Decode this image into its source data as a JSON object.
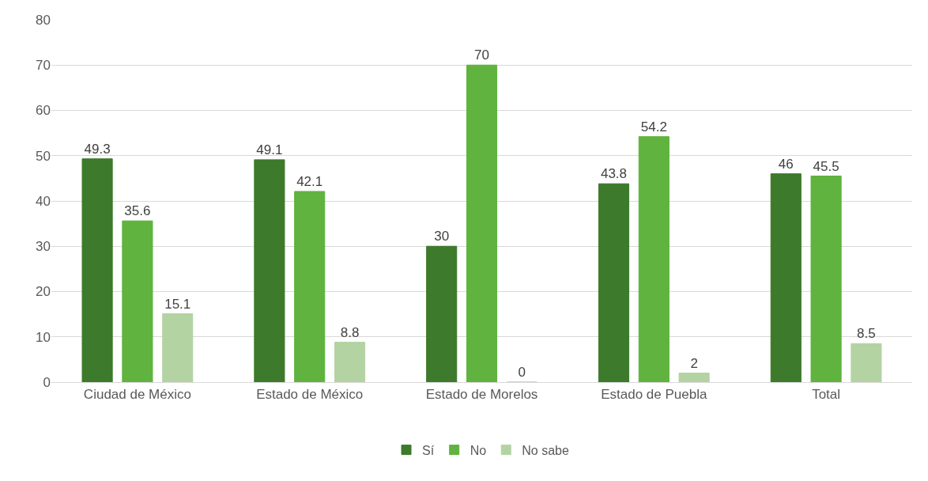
{
  "chart_data": {
    "type": "bar",
    "categories": [
      "Ciudad de México",
      "Estado de México",
      "Estado de Morelos",
      "Estado de Puebla",
      "Total"
    ],
    "series": [
      {
        "name": "Sí",
        "color": "#3d7a2b",
        "values": [
          49.3,
          49.1,
          30,
          43.8,
          46
        ]
      },
      {
        "name": "No",
        "color": "#5fb33e",
        "values": [
          35.6,
          42.1,
          70,
          54.2,
          45.5
        ]
      },
      {
        "name": "No sabe",
        "color": "#b3d3a3",
        "values": [
          15.1,
          8.8,
          0,
          2,
          8.5
        ]
      }
    ],
    "ylim": [
      0,
      80
    ],
    "yticks": [
      0,
      10,
      20,
      30,
      40,
      50,
      60,
      70,
      80
    ],
    "grid": "y",
    "legend": "bottom",
    "data_labels": true
  }
}
